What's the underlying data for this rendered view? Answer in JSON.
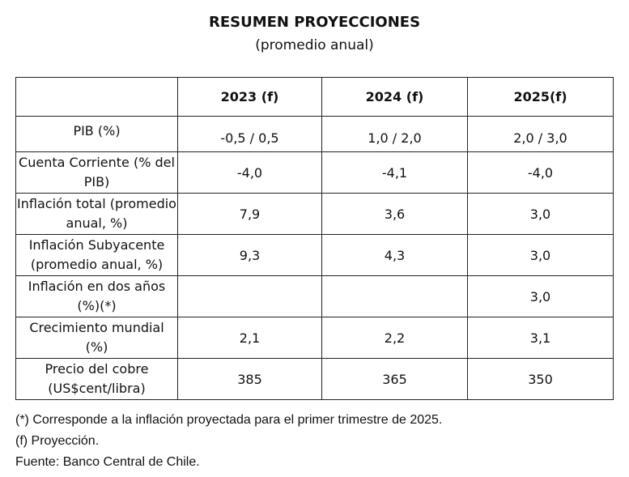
{
  "title": "RESUMEN PROYECCIONES",
  "subtitle": "(promedio anual)",
  "table": {
    "headers": [
      "",
      "2023 (f)",
      "2024 (f)",
      "2025(f)"
    ],
    "rows": [
      {
        "label": "PIB (%)",
        "values": [
          "-0,5 / 0,5",
          "1,0 / 2,0",
          "2,0 / 3,0"
        ]
      },
      {
        "label": "Cuenta Corriente (% del PIB)",
        "values": [
          "-4,0",
          "-4,1",
          "-4,0"
        ]
      },
      {
        "label": "Inflación total (promedio anual, %)",
        "values": [
          "7,9",
          "3,6",
          "3,0"
        ]
      },
      {
        "label": "Inflación Subyacente (promedio anual, %)",
        "values": [
          "9,3",
          "4,3",
          "3,0"
        ]
      },
      {
        "label": "Inflación en dos años (%)(*)",
        "values": [
          "",
          "",
          "3,0"
        ]
      },
      {
        "label": "Crecimiento mundial (%)",
        "values": [
          "2,1",
          "2,2",
          "3,1"
        ]
      },
      {
        "label": "Precio del cobre (US$cent/libra)",
        "values": [
          "385",
          "365",
          "350"
        ]
      }
    ]
  },
  "notes": [
    "(*) Corresponde a la inflación proyectada para el primer trimestre de 2025.",
    "(f) Proyección.",
    "Fuente: Banco Central de Chile."
  ]
}
